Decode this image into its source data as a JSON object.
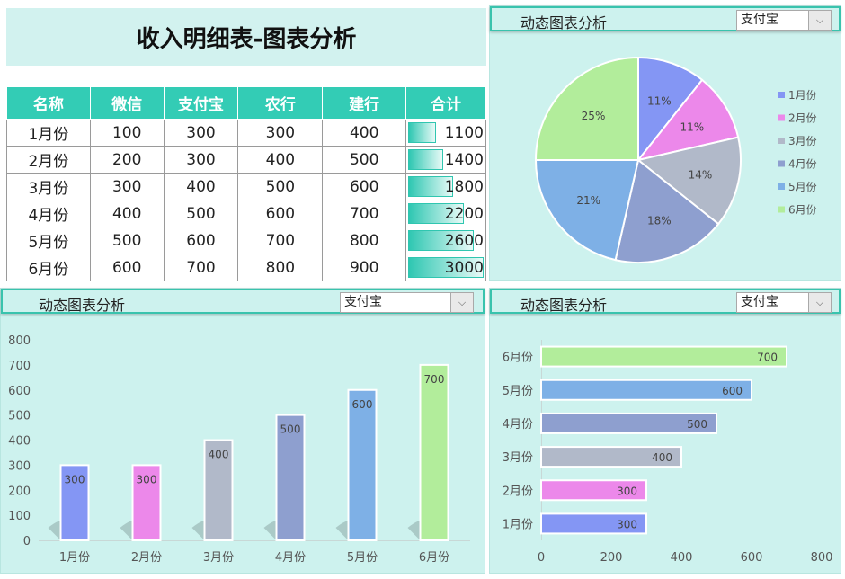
{
  "title": "收入明细表-图表分析",
  "table": {
    "headers": [
      "名称",
      "微信",
      "支付宝",
      "农行",
      "建行",
      "合计"
    ],
    "rows": [
      [
        "1月份",
        "100",
        "300",
        "300",
        "400",
        "1100"
      ],
      [
        "2月份",
        "200",
        "300",
        "400",
        "500",
        "1400"
      ],
      [
        "3月份",
        "300",
        "400",
        "500",
        "600",
        "1800"
      ],
      [
        "4月份",
        "400",
        "500",
        "600",
        "700",
        "2200"
      ],
      [
        "5月份",
        "500",
        "600",
        "700",
        "800",
        "2600"
      ],
      [
        "6月份",
        "600",
        "700",
        "800",
        "900",
        "3000"
      ]
    ],
    "databar_max": 3000
  },
  "panels": {
    "pie": {
      "title": "动态图表分析",
      "selected": "支付宝"
    },
    "column": {
      "title": "动态图表分析",
      "selected": "支付宝"
    },
    "bar": {
      "title": "动态图表分析",
      "selected": "支付宝"
    }
  },
  "colors": {
    "1月份": "#8496f4",
    "2月份": "#ec88ea",
    "3月份": "#b1b9c9",
    "4月份": "#8e9fcf",
    "5月份": "#7eb0e6",
    "6月份": "#b2ed9b"
  },
  "chart_data": [
    {
      "type": "pie",
      "categories": [
        "1月份",
        "2月份",
        "3月份",
        "4月份",
        "5月份",
        "6月份"
      ],
      "values": [
        300,
        300,
        400,
        500,
        600,
        700
      ],
      "data_labels": [
        "11%",
        "11%",
        "14%",
        "18%",
        "21%",
        "25%"
      ],
      "legend": "right"
    },
    {
      "type": "bar",
      "orientation": "vertical",
      "categories": [
        "1月份",
        "2月份",
        "3月份",
        "4月份",
        "5月份",
        "6月份"
      ],
      "values": [
        300,
        300,
        400,
        500,
        600,
        700
      ],
      "ylim": [
        0,
        800
      ],
      "yticks": [
        "0",
        "100",
        "200",
        "300",
        "400",
        "500",
        "600",
        "700",
        "800"
      ]
    },
    {
      "type": "bar",
      "orientation": "horizontal",
      "categories": [
        "1月份",
        "2月份",
        "3月份",
        "4月份",
        "5月份",
        "6月份"
      ],
      "values": [
        300,
        300,
        400,
        500,
        600,
        700
      ],
      "xlim": [
        0,
        800
      ],
      "xticks": [
        "0",
        "200",
        "400",
        "600",
        "800"
      ]
    }
  ]
}
